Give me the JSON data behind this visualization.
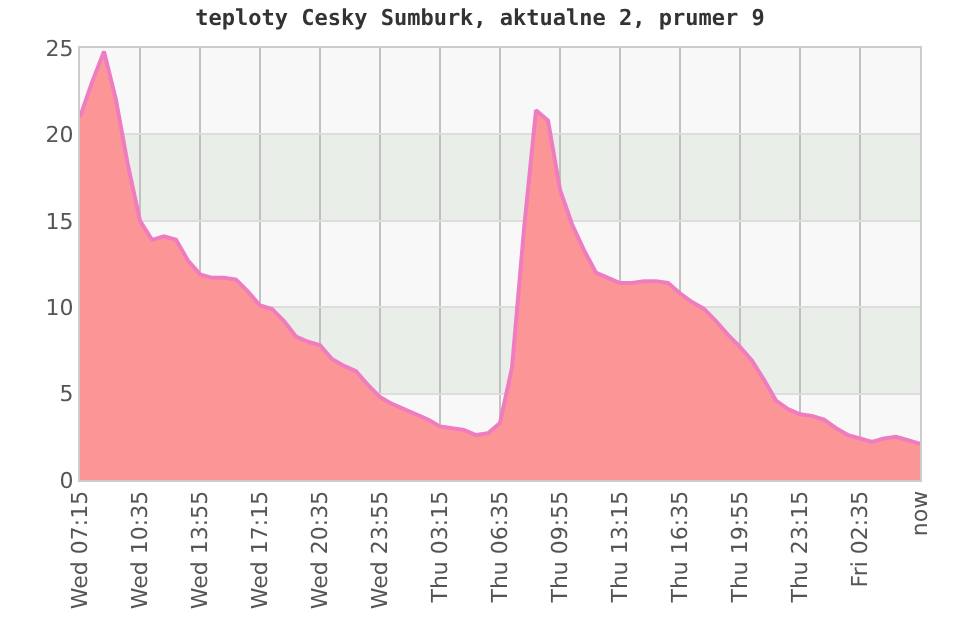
{
  "chart_data": {
    "type": "area",
    "title": "teploty Cesky Sumburk, aktualne 2, prumer 9",
    "categories": [
      "Wed 07:15",
      null,
      null,
      null,
      null,
      "Wed 10:35",
      null,
      null,
      null,
      null,
      "Wed 13:55",
      null,
      null,
      null,
      null,
      "Wed 17:15",
      null,
      null,
      null,
      null,
      "Wed 20:35",
      null,
      null,
      null,
      null,
      "Wed 23:55",
      null,
      null,
      null,
      null,
      "Thu 03:15",
      null,
      null,
      null,
      null,
      "Thu 06:35",
      null,
      null,
      null,
      null,
      "Thu 09:55",
      null,
      null,
      null,
      null,
      "Thu 13:15",
      null,
      null,
      null,
      null,
      "Thu 16:35",
      null,
      null,
      null,
      null,
      "Thu 19:55",
      null,
      null,
      null,
      null,
      "Thu 23:15",
      null,
      null,
      null,
      null,
      "Fri 02:35",
      null,
      null,
      null,
      null,
      "now"
    ],
    "series": [
      {
        "color": "#fc9696",
        "values": [
          21.0,
          23.0,
          24.8,
          22.0,
          18.2,
          15.0,
          13.9,
          14.1,
          13.9,
          12.7,
          11.9,
          11.7,
          11.7,
          11.6,
          10.9,
          10.1,
          9.9,
          9.2,
          8.3,
          8.0,
          7.8,
          7.0,
          6.6,
          6.3,
          5.5,
          4.8,
          4.4,
          4.1,
          3.8,
          3.5,
          3.1,
          3.0,
          2.9,
          2.6,
          2.7,
          3.3,
          6.5,
          14.5,
          21.4,
          20.8,
          16.8,
          14.8,
          13.3,
          12.0,
          11.7,
          11.4,
          11.4,
          11.5,
          11.5,
          11.4,
          10.8,
          10.3,
          9.9,
          9.2,
          8.4,
          7.7,
          6.9,
          5.8,
          4.6,
          4.1,
          3.8,
          3.7,
          3.5,
          3.0,
          2.6,
          2.4,
          2.2,
          2.4,
          2.5,
          2.3,
          2.1
        ]
      }
    ],
    "ylim": [
      0,
      25
    ],
    "yticks": [
      0,
      5,
      10,
      15,
      20,
      25
    ],
    "bands": [
      {
        "axis": "y",
        "from": 5,
        "to": 10,
        "color": "#e9eee9"
      },
      {
        "axis": "y",
        "from": 15,
        "to": 20,
        "color": "#e9eee9"
      }
    ],
    "grid": true,
    "legend": false
  }
}
